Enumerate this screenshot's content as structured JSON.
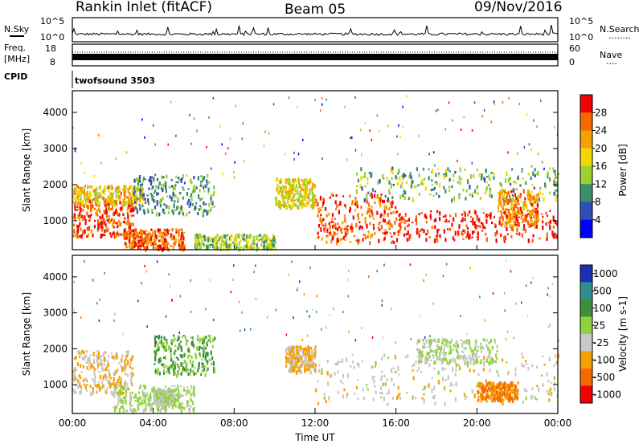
{
  "header": {
    "station": "Rankin Inlet (fitACF)",
    "beam": "Beam 05",
    "date": "09/Nov/2016"
  },
  "noise_panel": {
    "left_label": "N.Sky",
    "left_ticks": [
      "10^5",
      "10^0"
    ],
    "right_ticks": [
      "10^5",
      "10^0"
    ],
    "right_label": "N.Search",
    "right_key": "........"
  },
  "freq_panel": {
    "left_label_1": "Freq.",
    "left_label_2": "[MHz]",
    "left_ticks": [
      "18",
      "8"
    ],
    "right_ticks": [
      "60",
      "0"
    ],
    "right_label": "Nave",
    "right_key": "...."
  },
  "cpid_panel": {
    "label": "CPID",
    "program": "twofsound 3503"
  },
  "colors": {
    "power_scale": [
      "#0000ff",
      "#2f4fb4",
      "#3c8f6c",
      "#9bd12f",
      "#f0d800",
      "#f4a000",
      "#f46a00",
      "#f40000"
    ],
    "velocity_scale": [
      "#1c2fb4",
      "#2f8f8f",
      "#3c8f3c",
      "#8fd23c",
      "#c8c8c8",
      "#f4a000",
      "#f46a00",
      "#f40000"
    ]
  },
  "chart_data": [
    {
      "type": "heatmap",
      "title": "",
      "xlabel": "",
      "ylabel": "Slant Range [km]",
      "yticks": [
        "1000",
        "2000",
        "3000",
        "4000"
      ],
      "ylim": [
        200,
        4600
      ],
      "colorbar": {
        "label": "Power [dB]",
        "ticks": [
          "4",
          "8",
          "12",
          "16",
          "20",
          "24",
          "28"
        ],
        "range": [
          0,
          32
        ]
      },
      "regions": [
        {
          "t0": 0.0,
          "t1": 3.0,
          "r0": 600,
          "r1": 1600,
          "level": 28
        },
        {
          "t0": 0.0,
          "t1": 3.5,
          "r0": 1500,
          "r1": 2000,
          "level": 20
        },
        {
          "t0": 2.5,
          "t1": 5.5,
          "r0": 250,
          "r1": 800,
          "level": 26
        },
        {
          "t0": 3.0,
          "t1": 7.0,
          "r0": 1200,
          "r1": 2300,
          "level": 10
        },
        {
          "t0": 6.0,
          "t1": 10.0,
          "r0": 250,
          "r1": 650,
          "level": 14
        },
        {
          "t0": 10.0,
          "t1": 12.0,
          "r0": 1400,
          "r1": 2200,
          "level": 18
        },
        {
          "t0": 12.0,
          "t1": 16.0,
          "r0": 400,
          "r1": 1800,
          "level": 27
        },
        {
          "t0": 14.0,
          "t1": 24.0,
          "r0": 1600,
          "r1": 2500,
          "level": 12
        },
        {
          "t0": 16.0,
          "t1": 24.0,
          "r0": 500,
          "r1": 1300,
          "level": 30
        },
        {
          "t0": 21.0,
          "t1": 23.0,
          "r0": 900,
          "r1": 1900,
          "level": 24
        }
      ]
    },
    {
      "type": "heatmap",
      "title": "",
      "xlabel": "Time UT",
      "ylabel": "Slant Range [km]",
      "yticks": [
        "1000",
        "2000",
        "3000",
        "4000"
      ],
      "xticks": [
        "00:00",
        "04:00",
        "08:00",
        "12:00",
        "16:00",
        "20:00",
        "00:00"
      ],
      "xlim": [
        0,
        24
      ],
      "ylim": [
        200,
        4600
      ],
      "colorbar": {
        "label": "Velocity [m s-1]",
        "ticks": [
          "1000",
          "500",
          "100",
          "25",
          "-25",
          "-100",
          "-500",
          "-1000"
        ],
        "range": [
          -1200,
          1200
        ]
      },
      "regions": [
        {
          "t0": 0.0,
          "t1": 3.0,
          "r0": 800,
          "r1": 2000,
          "level": -300
        },
        {
          "t0": 2.0,
          "t1": 6.0,
          "r0": 300,
          "r1": 1000,
          "level": 80
        },
        {
          "t0": 4.0,
          "t1": 5.0,
          "r0": 500,
          "r1": 900,
          "level": 0
        },
        {
          "t0": 4.0,
          "t1": 7.0,
          "r0": 1300,
          "r1": 2400,
          "level": 400
        },
        {
          "t0": 10.5,
          "t1": 12.0,
          "r0": 1400,
          "r1": 2100,
          "level": -400
        },
        {
          "t0": 12.0,
          "t1": 24.0,
          "r0": 500,
          "r1": 1900,
          "level": -200
        },
        {
          "t0": 17.0,
          "t1": 21.0,
          "r0": 1600,
          "r1": 2300,
          "level": 0
        },
        {
          "t0": 20.0,
          "t1": 22.0,
          "r0": 600,
          "r1": 1100,
          "level": -700
        }
      ]
    }
  ]
}
